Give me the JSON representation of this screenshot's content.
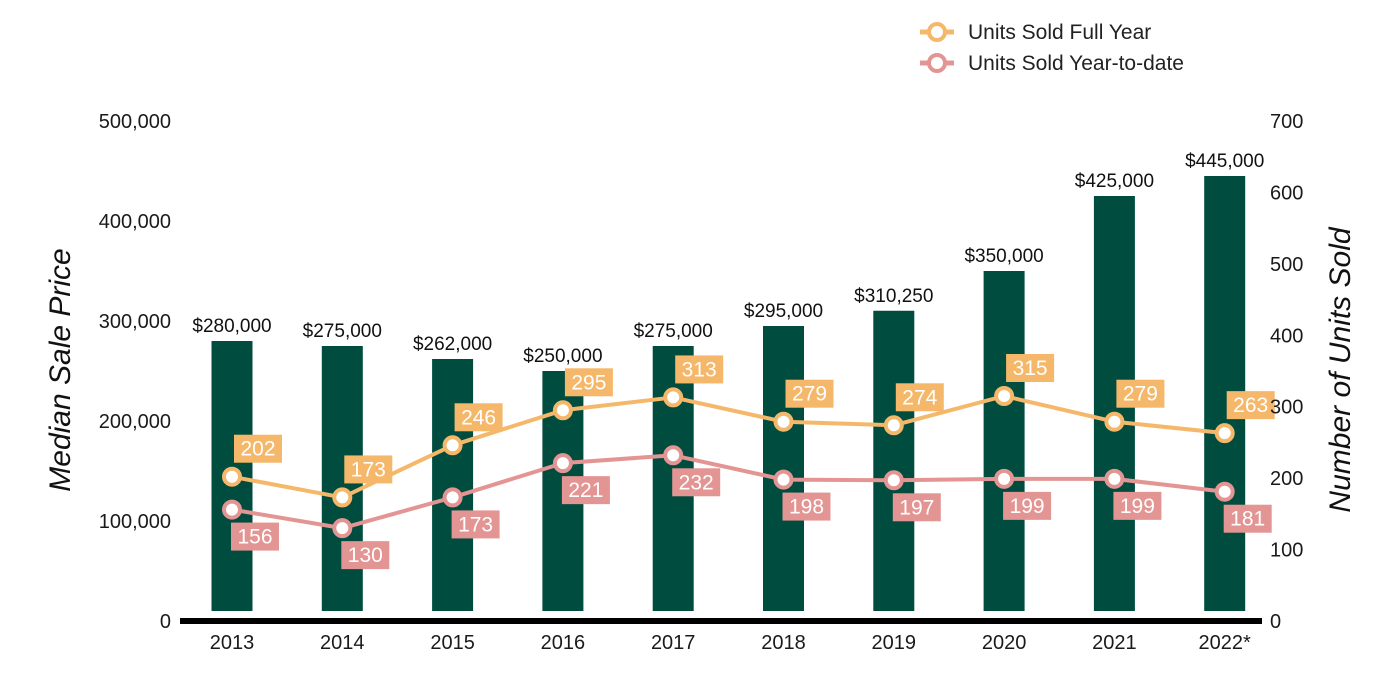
{
  "chart_data": {
    "type": "bar",
    "categories": [
      "2013",
      "2014",
      "2015",
      "2016",
      "2017",
      "2018",
      "2019",
      "2020",
      "2021",
      "2022*"
    ],
    "bar_series": {
      "name": "",
      "values": [
        280000,
        275000,
        262000,
        250000,
        275000,
        295000,
        310250,
        350000,
        425000,
        445000
      ],
      "labels": [
        "$280,000",
        "$275,000",
        "$262,000",
        "$250,000",
        "$275,000",
        "$295,000",
        "$310,250",
        "$350,000",
        "$425,000",
        "$445,000"
      ],
      "color": "#004c3f"
    },
    "line_series": [
      {
        "name": "Units Sold Full Year",
        "values": [
          202,
          173,
          246,
          295,
          313,
          279,
          274,
          315,
          279,
          263
        ],
        "color": "#f5b86a",
        "label_position": "above"
      },
      {
        "name": "Units Sold Year-to-date",
        "values": [
          156,
          130,
          173,
          221,
          232,
          198,
          197,
          199,
          199,
          181
        ],
        "color": "#e39593",
        "label_position": "below"
      }
    ],
    "ylabel_left": "Median Sale Price",
    "ylabel_right": "Number of Units Sold",
    "ylim_left": [
      0,
      500000
    ],
    "ylim_right": [
      0,
      700
    ],
    "yticks_left": [
      "0",
      "100,000",
      "200,000",
      "300,000",
      "400,000",
      "500,000"
    ],
    "yticks_right": [
      "0",
      "100",
      "200",
      "300",
      "400",
      "500",
      "600",
      "700"
    ],
    "grid": false,
    "legend_position": "top-right"
  }
}
